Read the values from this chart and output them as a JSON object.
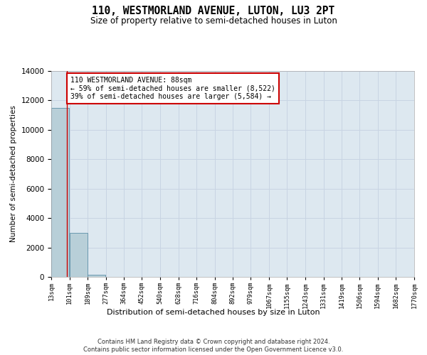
{
  "title": "110, WESTMORLAND AVENUE, LUTON, LU3 2PT",
  "subtitle": "Size of property relative to semi-detached houses in Luton",
  "xlabel": "Distribution of semi-detached houses by size in Luton",
  "ylabel": "Number of semi-detached properties",
  "annotation_line1": "110 WESTMORLAND AVENUE: 88sqm",
  "annotation_line2": "← 59% of semi-detached houses are smaller (8,522)",
  "annotation_line3": "39% of semi-detached houses are larger (5,584) →",
  "property_size": 88,
  "bin_edges": [
    13,
    101,
    189,
    277,
    364,
    452,
    540,
    628,
    716,
    804,
    892,
    979,
    1067,
    1155,
    1243,
    1331,
    1419,
    1506,
    1594,
    1682,
    1770
  ],
  "bar_heights": [
    11500,
    3000,
    150,
    0,
    0,
    0,
    0,
    0,
    0,
    0,
    0,
    0,
    0,
    0,
    0,
    0,
    0,
    0,
    0,
    0
  ],
  "bar_color": "#b8cfd8",
  "bar_edge_color": "#5b8fa8",
  "grid_color": "#c8d4e3",
  "bg_color": "#dde8f0",
  "annotation_box_color": "#ffffff",
  "annotation_box_edge": "#cc0000",
  "vline_color": "#cc0000",
  "tick_labels": [
    "13sqm",
    "101sqm",
    "189sqm",
    "277sqm",
    "364sqm",
    "452sqm",
    "540sqm",
    "628sqm",
    "716sqm",
    "804sqm",
    "892sqm",
    "979sqm",
    "1067sqm",
    "1155sqm",
    "1243sqm",
    "1331sqm",
    "1419sqm",
    "1506sqm",
    "1594sqm",
    "1682sqm",
    "1770sqm"
  ],
  "ylim": [
    0,
    14000
  ],
  "yticks": [
    0,
    2000,
    4000,
    6000,
    8000,
    10000,
    12000,
    14000
  ],
  "footer_line1": "Contains HM Land Registry data © Crown copyright and database right 2024.",
  "footer_line2": "Contains public sector information licensed under the Open Government Licence v3.0.",
  "background_color": "#ffffff",
  "fig_width": 6.0,
  "fig_height": 5.0
}
